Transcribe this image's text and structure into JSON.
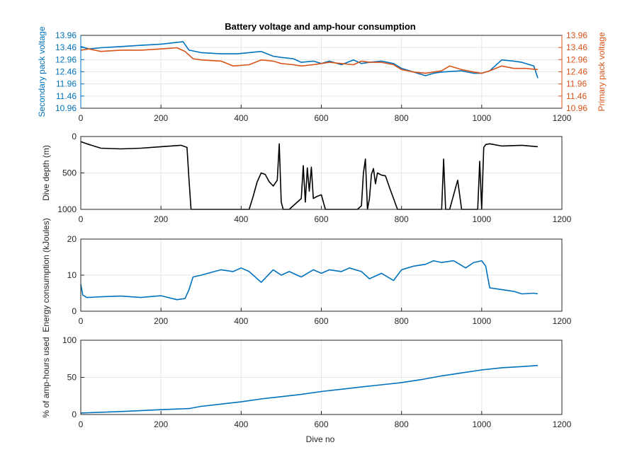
{
  "figure": {
    "title": "Battery voltage and amp-hour consumption",
    "xlabel": "Dive no"
  },
  "chart_data": [
    {
      "type": "line",
      "title": "Battery voltage and amp-hour consumption",
      "xlabel": "",
      "ylabel": "Secondary pack voltage",
      "y2label": "Primary pack voltage",
      "xlim": [
        0,
        1200
      ],
      "ylim": [
        10.96,
        13.96
      ],
      "y2lim": [
        10.96,
        13.96
      ],
      "xticks": [
        "0",
        "200",
        "400",
        "600",
        "800",
        "1000",
        "1200"
      ],
      "yticks": [
        "10.96",
        "11.46",
        "11.96",
        "12.46",
        "12.96",
        "13.46",
        "13.96"
      ],
      "y2ticks": [
        "10.96",
        "11.46",
        "11.96",
        "12.46",
        "12.96",
        "13.46",
        "13.96"
      ],
      "grid": true,
      "series": [
        {
          "axis": "left",
          "color": "#0072BD",
          "x": [
            0,
            20,
            50,
            100,
            150,
            200,
            230,
            255,
            270,
            300,
            350,
            390,
            420,
            450,
            480,
            500,
            530,
            550,
            580,
            600,
            620,
            650,
            680,
            700,
            720,
            750,
            780,
            800,
            830,
            860,
            880,
            900,
            950,
            980,
            1000,
            1020,
            1050,
            1080,
            1100,
            1130,
            1140
          ],
          "y": [
            13.5,
            13.4,
            13.45,
            13.5,
            13.55,
            13.6,
            13.65,
            13.7,
            13.35,
            13.25,
            13.2,
            13.2,
            13.25,
            13.3,
            13.1,
            13.05,
            13.0,
            12.85,
            12.9,
            12.8,
            12.9,
            12.75,
            12.95,
            12.8,
            12.85,
            12.9,
            12.8,
            12.6,
            12.45,
            12.3,
            12.4,
            12.45,
            12.5,
            12.4,
            12.4,
            12.5,
            12.95,
            12.9,
            12.85,
            12.7,
            12.2
          ]
        },
        {
          "axis": "right",
          "color": "#D95319",
          "x": [
            0,
            20,
            50,
            100,
            150,
            200,
            240,
            260,
            280,
            300,
            350,
            380,
            420,
            450,
            480,
            500,
            530,
            550,
            580,
            600,
            620,
            650,
            680,
            700,
            720,
            750,
            780,
            800,
            830,
            860,
            880,
            900,
            920,
            950,
            980,
            1000,
            1020,
            1050,
            1080,
            1110,
            1140
          ],
          "y": [
            13.35,
            13.4,
            13.3,
            13.35,
            13.35,
            13.4,
            13.45,
            13.3,
            13.0,
            12.95,
            12.9,
            12.7,
            12.75,
            12.95,
            12.9,
            12.8,
            12.75,
            12.7,
            12.75,
            12.8,
            12.85,
            12.8,
            12.75,
            12.9,
            12.85,
            12.85,
            12.75,
            12.55,
            12.45,
            12.4,
            12.45,
            12.5,
            12.7,
            12.55,
            12.45,
            12.4,
            12.5,
            12.7,
            12.6,
            12.6,
            12.55
          ]
        }
      ]
    },
    {
      "type": "line",
      "title": "",
      "xlabel": "",
      "ylabel": "Dive depth (m)",
      "xlim": [
        0,
        1200
      ],
      "ylim": [
        1000,
        0
      ],
      "y_reversed": true,
      "xticks": [
        "0",
        "200",
        "400",
        "600",
        "800",
        "1000",
        "1200"
      ],
      "yticks": [
        "0",
        "500",
        "1000"
      ],
      "grid": true,
      "series": [
        {
          "color": "#000000",
          "x": [
            0,
            15,
            50,
            100,
            150,
            200,
            250,
            265,
            270,
            275,
            280,
            420,
            430,
            440,
            450,
            460,
            470,
            480,
            490,
            495,
            500,
            505,
            515,
            520,
            550,
            555,
            560,
            565,
            570,
            575,
            580,
            590,
            600,
            610,
            690,
            700,
            705,
            710,
            715,
            720,
            725,
            730,
            735,
            740,
            750,
            760,
            770,
            790,
            800,
            900,
            905,
            910,
            920,
            925,
            940,
            945,
            950,
            960,
            990,
            995,
            1000,
            1005,
            1010,
            1020,
            1050,
            1100,
            1140
          ],
          "y": [
            70,
            100,
            160,
            170,
            160,
            140,
            120,
            150,
            600,
            1000,
            1000,
            1000,
            820,
            620,
            500,
            520,
            620,
            680,
            600,
            100,
            900,
            1000,
            1000,
            1000,
            850,
            400,
            900,
            430,
            750,
            420,
            850,
            820,
            800,
            1000,
            1000,
            950,
            500,
            310,
            1000,
            850,
            520,
            440,
            650,
            500,
            530,
            540,
            700,
            1000,
            1000,
            1000,
            310,
            1000,
            1000,
            900,
            600,
            800,
            1000,
            1000,
            1000,
            340,
            1000,
            150,
            110,
            100,
            130,
            120,
            140
          ]
        }
      ]
    },
    {
      "type": "line",
      "title": "",
      "xlabel": "",
      "ylabel": "Energy consumption (kJoules)",
      "xlim": [
        0,
        1200
      ],
      "ylim": [
        0,
        20
      ],
      "xticks": [
        "0",
        "200",
        "400",
        "600",
        "800",
        "1000",
        "1200"
      ],
      "yticks": [
        "0",
        "10",
        "20"
      ],
      "grid": true,
      "series": [
        {
          "color": "#0072BD",
          "x": [
            0,
            5,
            15,
            50,
            100,
            150,
            200,
            240,
            260,
            270,
            280,
            300,
            350,
            380,
            400,
            420,
            450,
            480,
            500,
            520,
            550,
            580,
            600,
            620,
            650,
            670,
            700,
            720,
            750,
            780,
            800,
            830,
            860,
            880,
            900,
            930,
            960,
            980,
            1000,
            1010,
            1020,
            1050,
            1080,
            1100,
            1130,
            1140
          ],
          "y": [
            7.5,
            4.5,
            3.8,
            4.0,
            4.2,
            3.8,
            4.3,
            3.2,
            3.5,
            6.0,
            9.5,
            10.0,
            11.5,
            11.0,
            12.0,
            11.0,
            8.0,
            11.5,
            10.0,
            11.0,
            9.5,
            11.5,
            10.5,
            11.5,
            11.0,
            12.0,
            11.0,
            9.0,
            10.5,
            8.5,
            11.5,
            12.5,
            13.0,
            14.0,
            13.5,
            14.0,
            12.0,
            13.5,
            14.0,
            12.5,
            6.5,
            6.0,
            5.5,
            4.8,
            5.0,
            4.8
          ]
        }
      ]
    },
    {
      "type": "line",
      "title": "",
      "xlabel": "Dive no",
      "ylabel": "% of amp-hours used",
      "xlim": [
        0,
        1200
      ],
      "ylim": [
        0,
        100
      ],
      "xticks": [
        "0",
        "200",
        "400",
        "600",
        "800",
        "1000",
        "1200"
      ],
      "yticks": [
        "0",
        "50",
        "100"
      ],
      "grid": true,
      "series": [
        {
          "color": "#0072BD",
          "x": [
            0,
            100,
            200,
            270,
            300,
            350,
            400,
            450,
            500,
            550,
            600,
            650,
            700,
            750,
            800,
            850,
            900,
            950,
            1000,
            1050,
            1100,
            1140
          ],
          "y": [
            2,
            4,
            6.5,
            8,
            11,
            14,
            17,
            21,
            24,
            27,
            31,
            34,
            37,
            40,
            43,
            47,
            52,
            56,
            60,
            63,
            64.5,
            66
          ]
        }
      ]
    }
  ]
}
